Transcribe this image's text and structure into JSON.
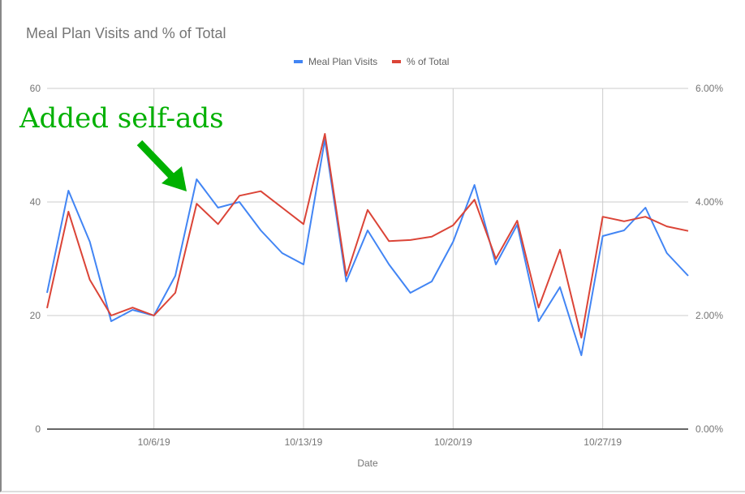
{
  "chart_data": {
    "type": "line",
    "title": "Meal Plan Visits and % of Total",
    "xlabel": "Date",
    "ylabel": "",
    "y2label": "",
    "x": [
      "10/1/19",
      "10/2/19",
      "10/3/19",
      "10/4/19",
      "10/5/19",
      "10/6/19",
      "10/7/19",
      "10/8/19",
      "10/9/19",
      "10/10/19",
      "10/11/19",
      "10/12/19",
      "10/13/19",
      "10/14/19",
      "10/15/19",
      "10/16/19",
      "10/17/19",
      "10/18/19",
      "10/19/19",
      "10/20/19",
      "10/21/19",
      "10/22/19",
      "10/23/19",
      "10/24/19",
      "10/25/19",
      "10/26/19",
      "10/27/19",
      "10/28/19",
      "10/29/19",
      "10/30/19",
      "10/31/19"
    ],
    "x_ticks": [
      "10/6/19",
      "10/13/19",
      "10/20/19",
      "10/27/19"
    ],
    "ylim": [
      0,
      60
    ],
    "y_ticks": [
      "0",
      "20",
      "40",
      "60"
    ],
    "y2lim": [
      0,
      6
    ],
    "y2_ticks": [
      "0.00%",
      "2.00%",
      "4.00%",
      "6.00%"
    ],
    "grid": true,
    "legend_position": "top",
    "series": [
      {
        "name": "Meal Plan Visits",
        "axis": "left",
        "color": "#4285f4",
        "values": [
          24,
          42,
          33,
          19,
          21,
          20,
          27,
          44,
          39,
          40,
          35,
          31,
          29,
          51,
          26,
          35,
          29,
          24,
          26,
          33,
          43,
          29,
          36,
          19,
          25,
          13,
          34,
          35,
          39,
          31,
          27
        ]
      },
      {
        "name": "% of Total",
        "axis": "right",
        "color": "#db4437",
        "values": [
          2.13,
          3.83,
          2.63,
          2.0,
          2.14,
          2.0,
          2.4,
          3.97,
          3.61,
          4.11,
          4.19,
          3.9,
          3.61,
          5.2,
          2.7,
          3.86,
          3.31,
          3.33,
          3.39,
          3.59,
          4.04,
          3.0,
          3.67,
          2.14,
          3.16,
          1.61,
          3.74,
          3.66,
          3.74,
          3.57,
          3.49
        ]
      }
    ],
    "annotations": [
      {
        "text": "Added self-ads",
        "color": "#00b000",
        "points_to": "10/7/19"
      }
    ]
  }
}
